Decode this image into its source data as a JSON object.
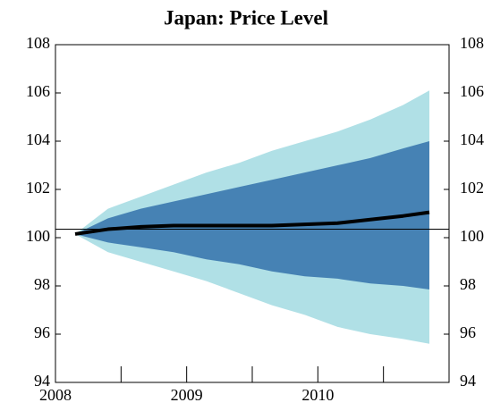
{
  "chart_data": {
    "type": "fan",
    "title": "Japan: Price Level",
    "x": [
      2008.15,
      2008.4,
      2008.65,
      2008.9,
      2009.15,
      2009.4,
      2009.65,
      2009.9,
      2010.15,
      2010.4,
      2010.65,
      2010.85
    ],
    "bands": [
      {
        "color": "#b0e0e6",
        "upper": [
          100.15,
          101.2,
          101.7,
          102.2,
          102.7,
          103.1,
          103.6,
          104.0,
          104.4,
          104.9,
          105.5,
          106.1
        ],
        "lower": [
          100.15,
          99.4,
          99.0,
          98.6,
          98.2,
          97.7,
          97.2,
          96.8,
          96.3,
          96.0,
          95.8,
          95.6
        ]
      },
      {
        "color": "#4682b4",
        "upper": [
          100.15,
          100.8,
          101.2,
          101.5,
          101.8,
          102.1,
          102.4,
          102.7,
          103.0,
          103.3,
          103.7,
          104.0
        ],
        "lower": [
          100.15,
          99.8,
          99.6,
          99.4,
          99.1,
          98.9,
          98.6,
          98.4,
          98.3,
          98.1,
          98.0,
          97.85
        ]
      }
    ],
    "series": [
      {
        "color": "#000000",
        "values": [
          100.15,
          100.35,
          100.45,
          100.5,
          100.5,
          100.5,
          100.5,
          100.55,
          100.6,
          100.75,
          100.9,
          101.05
        ]
      }
    ],
    "hline": 100.35,
    "xlim": [
      2008,
      2011
    ],
    "xticks": [
      2008,
      2009,
      2010
    ],
    "xminor_ticks": [
      2008.5,
      2009.5,
      2010.5
    ],
    "ylim": [
      94,
      108
    ],
    "yticks": [
      94,
      96,
      98,
      100,
      102,
      104,
      106,
      108
    ],
    "y2lim": [
      94,
      108
    ],
    "y2ticks": [
      94,
      96,
      98,
      100,
      102,
      104,
      106,
      108
    ]
  }
}
